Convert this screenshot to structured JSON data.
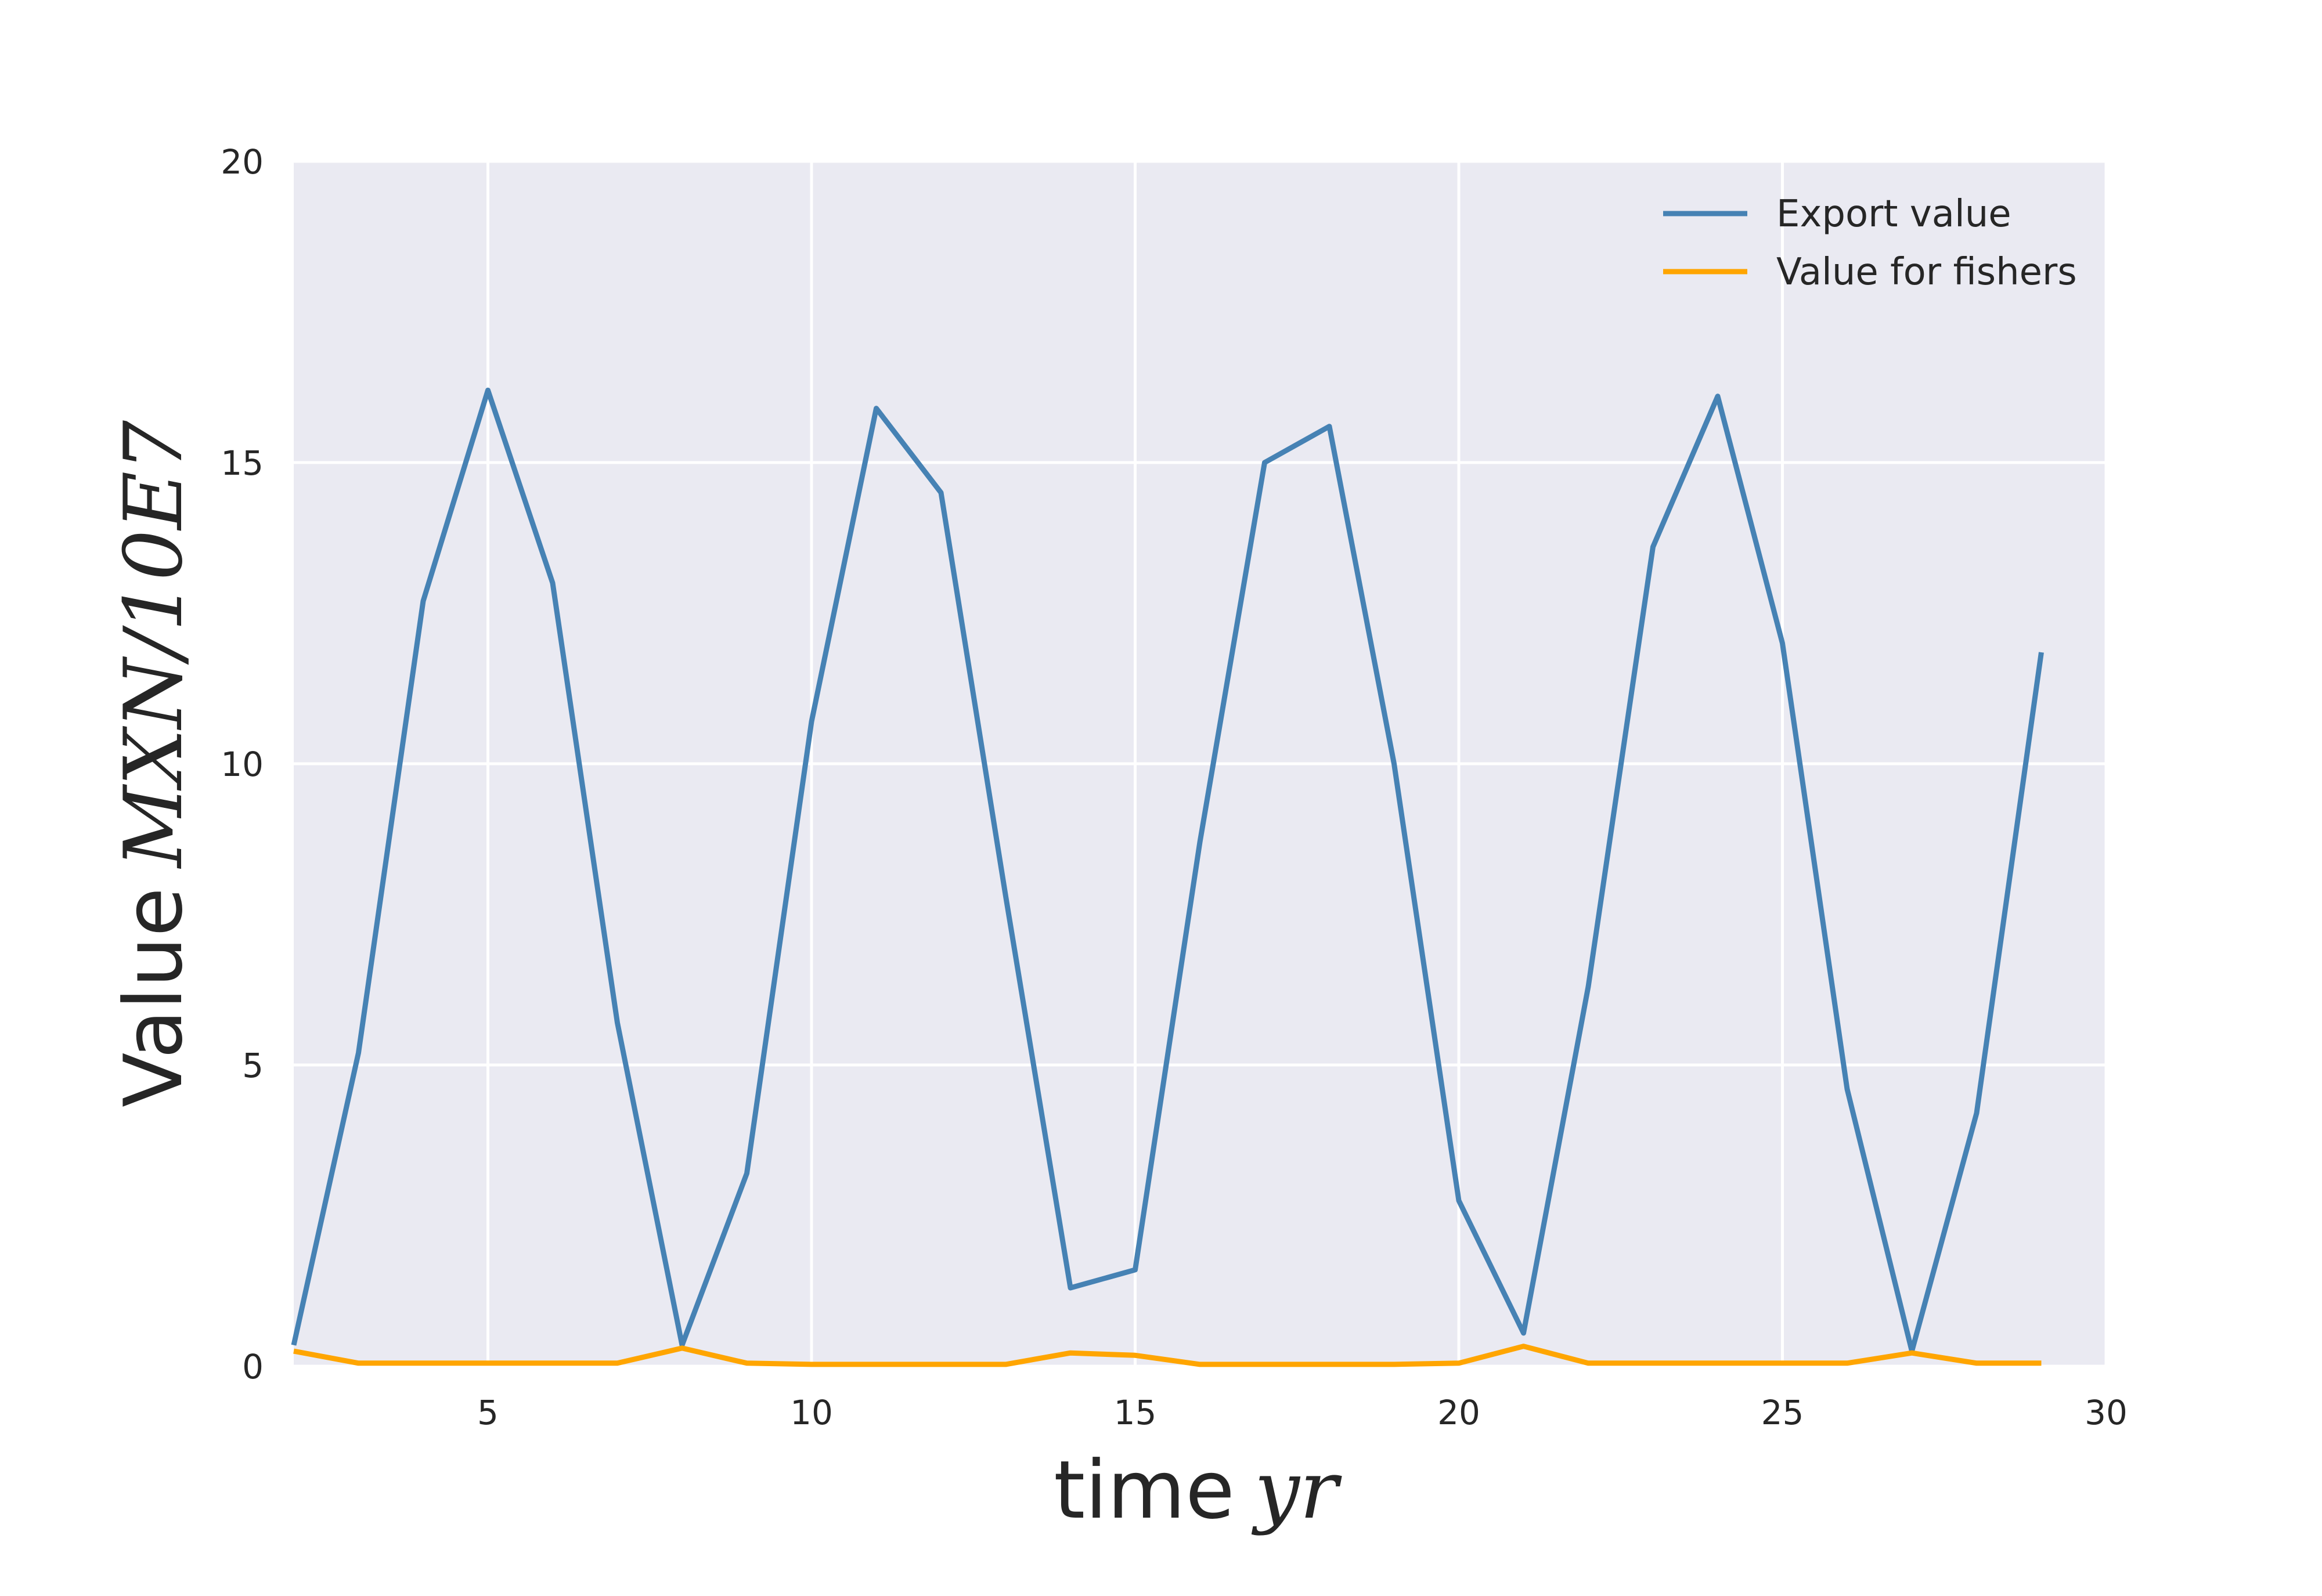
{
  "chart_data": {
    "type": "line",
    "xlabel": {
      "main": "time",
      "math": "yr"
    },
    "ylabel": {
      "main": "Value",
      "math": "MXN/10E7"
    },
    "xlim": [
      2,
      30
    ],
    "ylim": [
      0,
      20
    ],
    "xticks": [
      5,
      10,
      15,
      20,
      25,
      30
    ],
    "yticks": [
      0,
      5,
      10,
      15,
      20
    ],
    "grid": true,
    "legend_position": "top-right",
    "x": [
      2,
      3,
      4,
      5,
      6,
      7,
      8,
      9,
      10,
      11,
      12,
      13,
      14,
      15,
      16,
      17,
      18,
      19,
      20,
      21,
      22,
      23,
      24,
      25,
      26,
      27,
      28,
      29
    ],
    "series": [
      {
        "name": "Export value",
        "color": "#4682b4",
        "values": [
          0.35,
          5.2,
          12.7,
          16.2,
          13.0,
          5.7,
          0.35,
          3.2,
          10.7,
          15.9,
          14.5,
          7.8,
          1.3,
          1.6,
          8.7,
          15.0,
          15.6,
          10.0,
          2.75,
          0.55,
          6.3,
          13.6,
          16.1,
          12.0,
          4.6,
          0.25,
          4.2,
          11.85
        ]
      },
      {
        "name": "Value for fishers",
        "color": "#ffa500",
        "values": [
          0.25,
          0.05,
          0.05,
          0.05,
          0.05,
          0.05,
          0.3,
          0.05,
          0.03,
          0.03,
          0.03,
          0.03,
          0.22,
          0.18,
          0.03,
          0.03,
          0.03,
          0.03,
          0.05,
          0.33,
          0.05,
          0.05,
          0.05,
          0.05,
          0.05,
          0.22,
          0.05,
          0.05
        ]
      }
    ]
  }
}
